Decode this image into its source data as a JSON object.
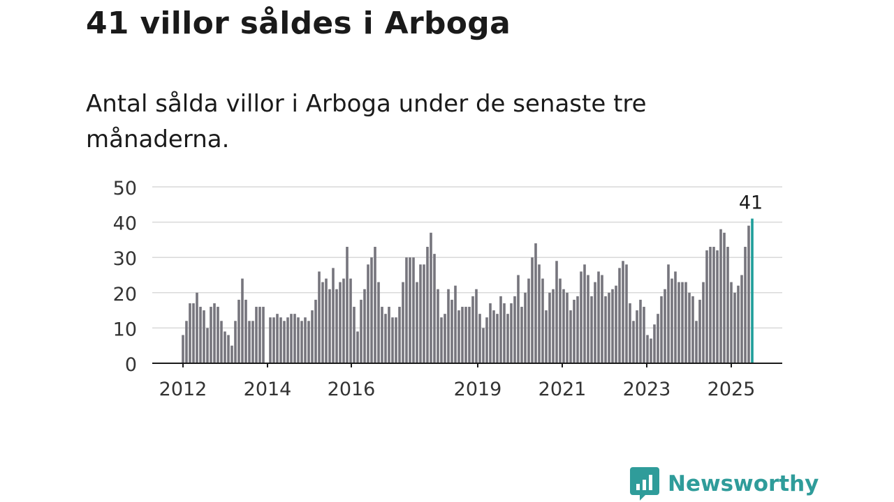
{
  "title": "41 villor såldes i Arboga",
  "subtitle": "Antal sålda villor i Arboga under de senaste tre månaderna.",
  "brand": {
    "name": "Newsworthy",
    "logo_icon": "bar-chart-speech-bubble-icon",
    "color": "#2f9c9a"
  },
  "chart_data": {
    "type": "bar",
    "x_ticks": [
      "2012",
      "2014",
      "2016",
      "2019",
      "2021",
      "2023",
      "2025"
    ],
    "ylim": [
      0,
      50
    ],
    "y_ticks": [
      0,
      10,
      20,
      30,
      40,
      50
    ],
    "grid": true,
    "bar_color": "#76757d",
    "highlight_color": "#1f9e9a",
    "highlight_label": "41",
    "values": [
      8,
      12,
      17,
      17,
      20,
      16,
      15,
      10,
      16,
      17,
      16,
      12,
      9,
      8,
      5,
      12,
      18,
      24,
      18,
      12,
      12,
      16,
      16,
      16,
      0,
      13,
      13,
      14,
      13,
      12,
      13,
      14,
      14,
      13,
      12,
      13,
      12,
      15,
      18,
      26,
      23,
      24,
      21,
      27,
      21,
      23,
      24,
      33,
      24,
      16,
      9,
      18,
      21,
      28,
      30,
      33,
      23,
      16,
      14,
      16,
      13,
      13,
      16,
      23,
      30,
      30,
      30,
      23,
      28,
      28,
      33,
      37,
      31,
      21,
      13,
      14,
      21,
      18,
      22,
      15,
      16,
      16,
      16,
      19,
      21,
      14,
      10,
      13,
      17,
      15,
      14,
      19,
      17,
      14,
      17,
      19,
      25,
      16,
      20,
      24,
      30,
      34,
      28,
      24,
      15,
      20,
      21,
      29,
      24,
      21,
      20,
      15,
      18,
      19,
      26,
      28,
      25,
      19,
      23,
      26,
      25,
      19,
      20,
      21,
      22,
      27,
      29,
      28,
      17,
      12,
      15,
      18,
      16,
      8,
      7,
      11,
      14,
      19,
      21,
      28,
      24,
      26,
      23,
      23,
      23,
      20,
      19,
      12,
      18,
      23,
      32,
      33,
      33,
      32,
      38,
      37,
      33,
      23,
      20,
      22,
      25,
      33,
      39,
      41
    ]
  }
}
